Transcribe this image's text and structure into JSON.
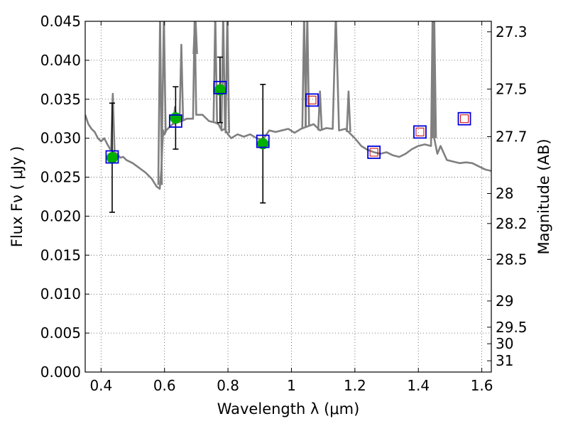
{
  "chart_data": {
    "type": "line",
    "xlabel": "Wavelength  λ (μm)",
    "ylabel": "Flux  Fν  ( μJy )",
    "ylabel_right": "Magnitude (AB)",
    "xlim": [
      0.35,
      1.63
    ],
    "ylim": [
      0,
      0.045
    ],
    "grid": true,
    "x_ticks": [
      {
        "value": 0.4,
        "label": "0.4"
      },
      {
        "value": 0.6,
        "label": "0.6"
      },
      {
        "value": 0.8,
        "label": "0.8"
      },
      {
        "value": 1.0,
        "label": "1"
      },
      {
        "value": 1.2,
        "label": "1.2"
      },
      {
        "value": 1.4,
        "label": "1.4"
      },
      {
        "value": 1.6,
        "label": "1.6"
      }
    ],
    "y_ticks": [
      {
        "value": 0.0,
        "label": "0.000"
      },
      {
        "value": 0.005,
        "label": "0.005"
      },
      {
        "value": 0.01,
        "label": "0.010"
      },
      {
        "value": 0.015,
        "label": "0.015"
      },
      {
        "value": 0.02,
        "label": "0.020"
      },
      {
        "value": 0.025,
        "label": "0.025"
      },
      {
        "value": 0.03,
        "label": "0.030"
      },
      {
        "value": 0.035,
        "label": "0.035"
      },
      {
        "value": 0.04,
        "label": "0.040"
      },
      {
        "value": 0.045,
        "label": "0.045"
      }
    ],
    "mag_ticks": [
      {
        "mag": 27.3,
        "label": "27.3"
      },
      {
        "mag": 27.5,
        "label": "27.5"
      },
      {
        "mag": 27.7,
        "label": "27.7"
      },
      {
        "mag": 28,
        "label": "28"
      },
      {
        "mag": 28.2,
        "label": "28.2"
      },
      {
        "mag": 28.5,
        "label": "28.5"
      },
      {
        "mag": 29,
        "label": "29"
      },
      {
        "mag": 29.5,
        "label": "29.5"
      },
      {
        "mag": 30,
        "label": "30"
      },
      {
        "mag": 31,
        "label": "31"
      }
    ],
    "colors": {
      "spectrum": "#808080",
      "observed": "#00b000",
      "model_box": "#0000dd",
      "upper_box": "#cc0000",
      "errorbar": "#000000"
    },
    "spectrum": {
      "x": [
        0.35,
        0.36,
        0.37,
        0.38,
        0.39,
        0.4,
        0.41,
        0.42,
        0.43,
        0.44,
        0.45,
        0.46,
        0.47,
        0.48,
        0.5,
        0.52,
        0.54,
        0.56,
        0.575,
        0.585,
        0.59,
        0.593,
        0.596,
        0.6,
        0.605,
        0.615,
        0.625,
        0.64,
        0.655,
        0.67,
        0.69,
        0.695,
        0.7,
        0.72,
        0.74,
        0.76,
        0.77,
        0.78,
        0.79,
        0.8,
        0.81,
        0.83,
        0.85,
        0.87,
        0.89,
        0.91,
        0.93,
        0.95,
        0.97,
        0.99,
        1.01,
        1.03,
        1.05,
        1.07,
        1.09,
        1.11,
        1.13,
        1.14,
        1.15,
        1.17,
        1.2,
        1.22,
        1.24,
        1.26,
        1.28,
        1.3,
        1.32,
        1.34,
        1.36,
        1.38,
        1.4,
        1.42,
        1.44,
        1.445,
        1.45,
        1.46,
        1.47,
        1.49,
        1.51,
        1.53,
        1.55,
        1.57,
        1.59,
        1.61,
        1.63
      ],
      "y": [
        0.033,
        0.0318,
        0.0312,
        0.0308,
        0.03,
        0.0296,
        0.03,
        0.0292,
        0.0285,
        0.0282,
        0.028,
        0.0275,
        0.0276,
        0.0272,
        0.0268,
        0.0262,
        0.0256,
        0.0248,
        0.0238,
        0.0235,
        0.026,
        0.029,
        0.031,
        0.0305,
        0.031,
        0.0314,
        0.0318,
        0.032,
        0.0322,
        0.0325,
        0.0325,
        0.046,
        0.033,
        0.033,
        0.0322,
        0.032,
        0.0318,
        0.031,
        0.0312,
        0.0305,
        0.03,
        0.0305,
        0.0302,
        0.0305,
        0.03,
        0.0298,
        0.031,
        0.0308,
        0.031,
        0.0312,
        0.0307,
        0.0312,
        0.0315,
        0.0318,
        0.031,
        0.0313,
        0.0312,
        0.046,
        0.031,
        0.0312,
        0.03,
        0.029,
        0.0285,
        0.0282,
        0.028,
        0.0282,
        0.0278,
        0.0276,
        0.028,
        0.0286,
        0.029,
        0.0292,
        0.029,
        0.046,
        0.03,
        0.028,
        0.029,
        0.0272,
        0.027,
        0.0268,
        0.0269,
        0.0268,
        0.0264,
        0.026,
        0.0258
      ]
    },
    "emission_lines": [
      {
        "x": 0.437,
        "peak": 0.0357
      },
      {
        "x": 0.586,
        "peak": 0.046
      },
      {
        "x": 0.598,
        "peak": 0.046
      },
      {
        "x": 0.633,
        "peak": 0.034
      },
      {
        "x": 0.653,
        "peak": 0.042
      },
      {
        "x": 0.697,
        "peak": 0.046
      },
      {
        "x": 0.76,
        "peak": 0.046
      },
      {
        "x": 0.785,
        "peak": 0.046
      },
      {
        "x": 0.798,
        "peak": 0.046
      },
      {
        "x": 1.04,
        "peak": 0.046
      },
      {
        "x": 1.05,
        "peak": 0.046
      },
      {
        "x": 1.09,
        "peak": 0.036
      },
      {
        "x": 1.14,
        "peak": 0.046
      },
      {
        "x": 1.18,
        "peak": 0.036
      },
      {
        "x": 1.45,
        "peak": 0.046
      }
    ],
    "observed_points": [
      {
        "x": 0.435,
        "y": 0.0275,
        "err": 0.007
      },
      {
        "x": 0.635,
        "y": 0.0326,
        "err": 0.004
      },
      {
        "x": 0.775,
        "y": 0.0362,
        "err": 0.0042
      },
      {
        "x": 0.91,
        "y": 0.0293,
        "err": 0.0076
      }
    ],
    "model_boxes": [
      {
        "x": 0.435,
        "y": 0.0276,
        "inner": false
      },
      {
        "x": 0.635,
        "y": 0.0322,
        "inner": false
      },
      {
        "x": 0.775,
        "y": 0.0365,
        "inner": false
      },
      {
        "x": 0.91,
        "y": 0.0296,
        "inner": false
      },
      {
        "x": 1.065,
        "y": 0.0349,
        "inner": true
      },
      {
        "x": 1.26,
        "y": 0.0282,
        "inner": true
      },
      {
        "x": 1.405,
        "y": 0.0308,
        "inner": true
      },
      {
        "x": 1.545,
        "y": 0.0325,
        "inner": true
      }
    ]
  }
}
